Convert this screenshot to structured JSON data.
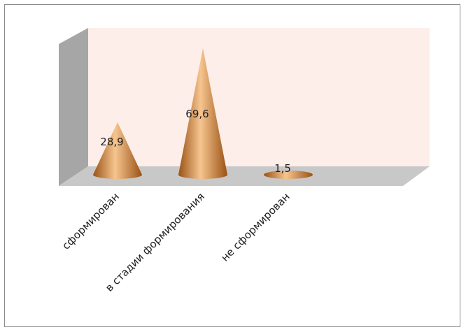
{
  "chart_data": {
    "type": "bar",
    "style": "3d-cone",
    "categories": [
      "сформирован",
      "в стадии формирования",
      "не сформирован"
    ],
    "values": [
      28.9,
      69.6,
      1.5
    ],
    "data_labels": [
      "28,9",
      "69,6",
      "1,5"
    ],
    "ylim": [
      0,
      70
    ],
    "grid": false,
    "legend": "none",
    "colors": {
      "bar": "#d98b3a",
      "bar_light": "#f6c58f",
      "bar_dark": "#9a5215",
      "back_wall": "#fdeeea",
      "side_wall": "#a6a6a6",
      "floor": "#c8c8c8"
    }
  }
}
